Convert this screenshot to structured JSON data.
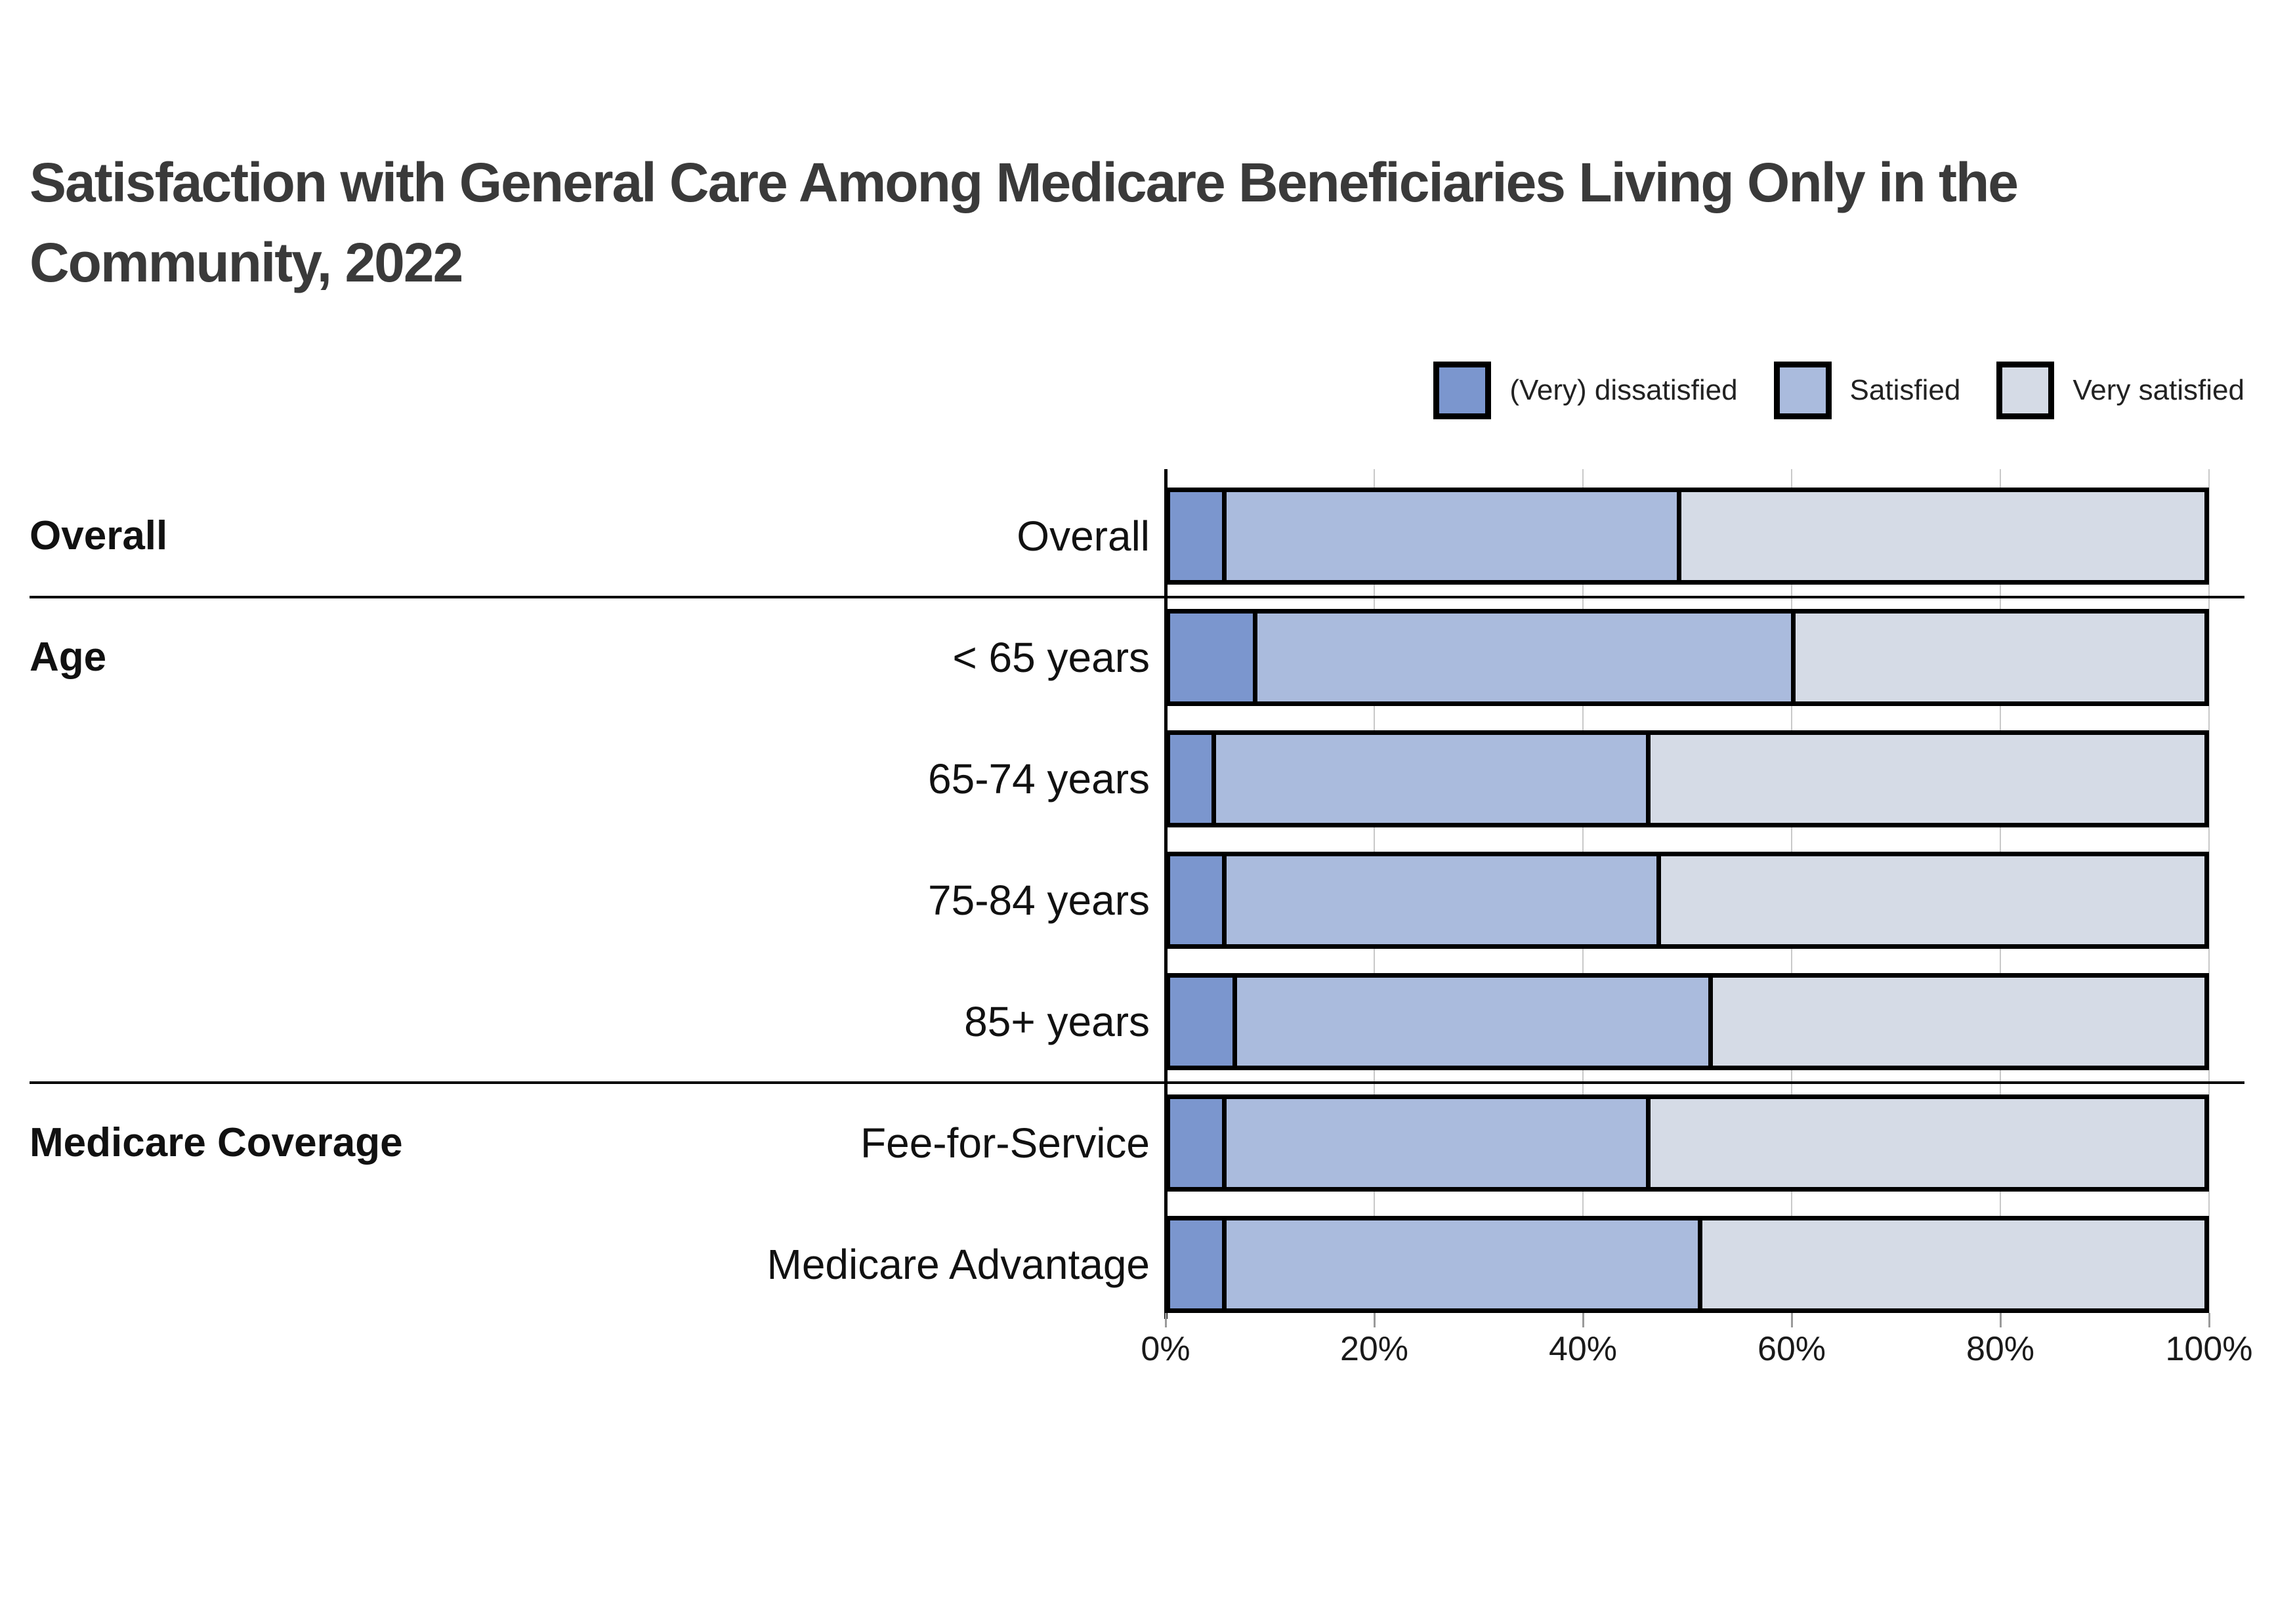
{
  "title": "Satisfaction with General Care Among Medicare Beneficiaries Living Only in the Community, 2022",
  "legend": [
    {
      "label": "(Very) dissatisfied",
      "color": "#7b96ce"
    },
    {
      "label": "Satisfied",
      "color": "#aabbdd"
    },
    {
      "label": "Very satisfied",
      "color": "#d5dbe6"
    }
  ],
  "chart_data": {
    "type": "bar",
    "orientation": "horizontal",
    "stacked": true,
    "title": "Satisfaction with General Care Among Medicare Beneficiaries Living Only in the Community, 2022",
    "categories": [
      "Overall",
      "< 65 years",
      "65-74 years",
      "75-84 years",
      "85+ years",
      "Fee-for-Service",
      "Medicare Advantage"
    ],
    "groups": [
      {
        "label": "Overall",
        "rows": [
          "Overall"
        ]
      },
      {
        "label": "Age",
        "rows": [
          "< 65 years",
          "65-74 years",
          "75-84 years",
          "85+ years"
        ]
      },
      {
        "label": "Medicare Coverage",
        "rows": [
          "Fee-for-Service",
          "Medicare Advantage"
        ]
      }
    ],
    "series": [
      {
        "name": "(Very) dissatisfied",
        "color": "#7b96ce",
        "values": [
          5,
          8,
          4,
          5,
          6,
          5,
          5
        ]
      },
      {
        "name": "Satisfied",
        "color": "#aabbdd",
        "values": [
          44,
          52,
          42,
          42,
          46,
          41,
          46
        ]
      },
      {
        "name": "Very satisfied",
        "color": "#d5dbe6",
        "values": [
          51,
          40,
          54,
          53,
          48,
          54,
          49
        ]
      }
    ],
    "x_axis": {
      "min": 0,
      "max": 100,
      "unit": "%",
      "ticks": [
        "0%",
        "20%",
        "40%",
        "60%",
        "80%",
        "100%"
      ]
    },
    "legend_position": "top-right",
    "grid": "vertical-light",
    "ylabel": "",
    "xlabel": ""
  }
}
